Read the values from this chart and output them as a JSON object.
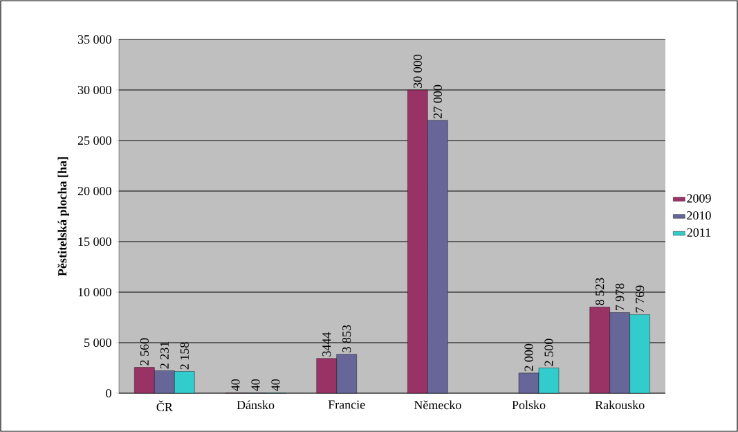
{
  "chart_data": {
    "type": "bar",
    "ylabel": "Pěstitelská plocha [ha]",
    "categories": [
      "ČR",
      "Dánsko",
      "Francie",
      "Německo",
      "Polsko",
      "Rakousko"
    ],
    "series": [
      {
        "name": "2009",
        "color": "#993366",
        "values": [
          2560,
          40,
          3444,
          30000,
          null,
          8523
        ],
        "value_labels": [
          "2 560",
          "40",
          "3444",
          "30 000",
          null,
          "8 523"
        ]
      },
      {
        "name": "2010",
        "color": "#666699",
        "values": [
          2231,
          40,
          3853,
          27000,
          2000,
          7978
        ],
        "value_labels": [
          "2 231",
          "40",
          "3 853",
          "27 000",
          "2 000",
          "7 978"
        ]
      },
      {
        "name": "2011",
        "color": "#33cccc",
        "values": [
          2158,
          40,
          null,
          null,
          2500,
          7769
        ],
        "value_labels": [
          "2 158",
          "40",
          null,
          null,
          "2 500",
          "7 769"
        ]
      }
    ],
    "ylim": [
      0,
      35000
    ],
    "yticks": [
      0,
      {
        "value": 5000,
        "label": "5 000"
      },
      {
        "value": 10000,
        "label": "10 000"
      },
      {
        "value": 15000,
        "label": "15 000"
      },
      {
        "value": 20000,
        "label": "20 000"
      },
      {
        "value": 25000,
        "label": "25 000"
      },
      {
        "value": 30000,
        "label": "30 000"
      },
      {
        "value": 35000,
        "label": "35 000"
      }
    ],
    "grid": "y",
    "legend": "right"
  }
}
